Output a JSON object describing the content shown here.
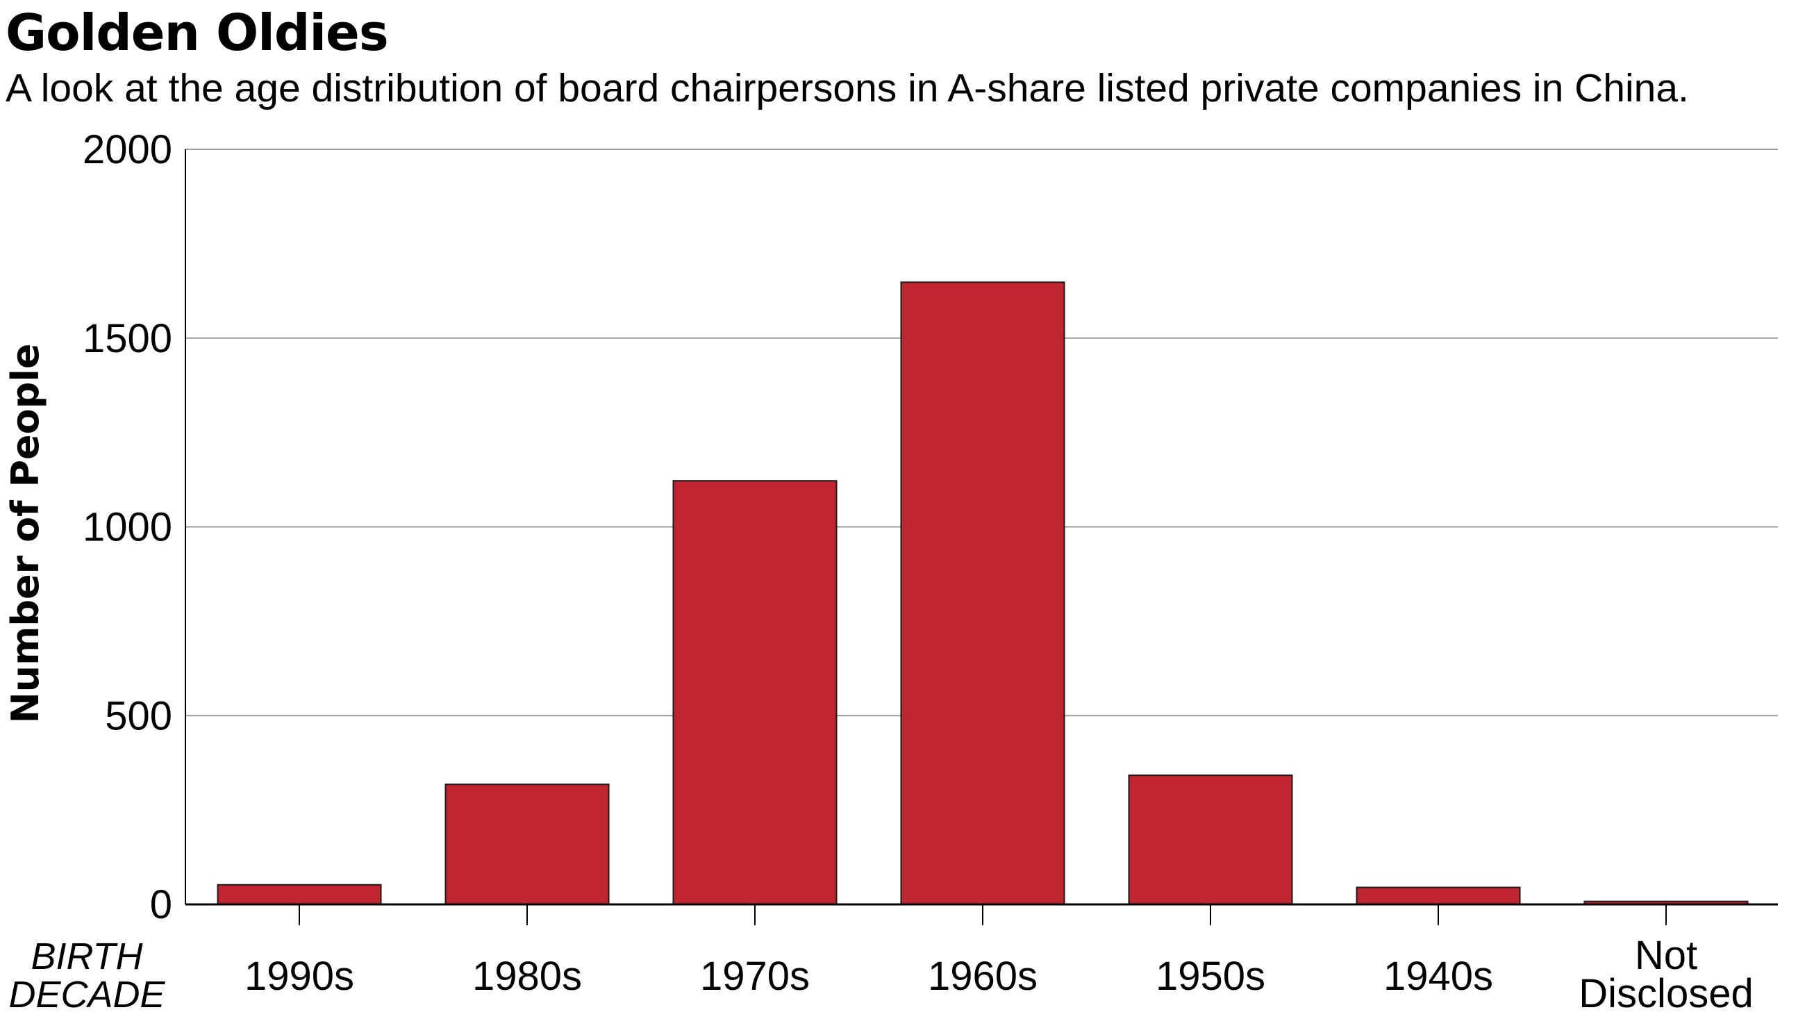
{
  "chart_data": {
    "type": "bar",
    "title": "Golden Oldies",
    "subtitle": "A look at the age distribution of board chairpersons in A-share listed private companies in China.",
    "categories": [
      "1990s",
      "1980s",
      "1970s",
      "1960s",
      "1950s",
      "1940s",
      "Not Disclosed"
    ],
    "category_lines": [
      [
        "1990s"
      ],
      [
        "1980s"
      ],
      [
        "1970s"
      ],
      [
        "1960s"
      ],
      [
        "1950s"
      ],
      [
        "1940s"
      ],
      [
        "Not",
        "Disclosed"
      ]
    ],
    "values": [
      52,
      318,
      1122,
      1648,
      342,
      45,
      8
    ],
    "ylabel": "Number of People",
    "xlabel_lines": [
      "BIRTH",
      "DECADE"
    ],
    "ylim": [
      0,
      2000
    ],
    "yticks": [
      0,
      500,
      1000,
      1500,
      2000
    ],
    "grid": true,
    "legend": "none",
    "colors": {
      "bar_fill": "#c0262f",
      "bar_stroke": "#1a1a1a",
      "grid": "#9a9a9a",
      "axis": "#000000"
    }
  }
}
